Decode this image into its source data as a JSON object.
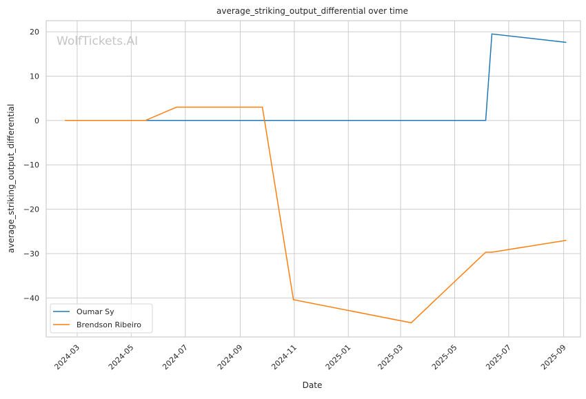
{
  "watermark": "WolfTickets.AI",
  "chart_data": {
    "type": "line",
    "title": "average_striking_output_differential over time",
    "xlabel": "Date",
    "ylabel": "average_striking_output_differential",
    "xlim": [
      "2024-01-26",
      "2025-09-20"
    ],
    "ylim": [
      -48.8,
      22.5
    ],
    "grid": true,
    "legend": "lower-left",
    "x_ticks": [
      "2024-03",
      "2024-05",
      "2024-07",
      "2024-09",
      "2024-11",
      "2025-01",
      "2025-03",
      "2025-05",
      "2025-07",
      "2025-09"
    ],
    "y_ticks": [
      20,
      10,
      0,
      -10,
      -20,
      -30,
      -40
    ],
    "series": [
      {
        "name": "Oumar Sy",
        "color": "#1f77b4",
        "x": [
          "2024-05-17",
          "2025-06-05",
          "2025-06-12",
          "2025-09-04"
        ],
        "y": [
          0,
          0,
          19.5,
          17.6
        ]
      },
      {
        "name": "Brendson Ribeiro",
        "color": "#ff7f0e",
        "x": [
          "2024-02-16",
          "2024-05-17",
          "2024-06-21",
          "2024-09-26",
          "2024-10-31",
          "2025-03-13",
          "2025-06-05",
          "2025-06-12",
          "2025-09-04"
        ],
        "y": [
          0,
          0,
          3,
          3,
          -40.4,
          -45.6,
          -29.7,
          -29.7,
          -27.0
        ]
      }
    ]
  }
}
